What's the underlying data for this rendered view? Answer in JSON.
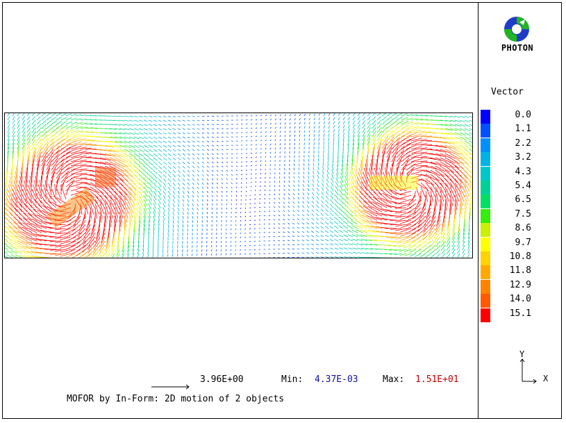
{
  "logo": {
    "text": "PHOTON",
    "icon": "photon-logo-icon"
  },
  "legend": {
    "title": "Vector",
    "entries": [
      {
        "value": "0.0",
        "color": "#0000ff"
      },
      {
        "value": "1.1",
        "color": "#0050ff"
      },
      {
        "value": "2.2",
        "color": "#0090ff"
      },
      {
        "value": "3.2",
        "color": "#00b4e6"
      },
      {
        "value": "4.3",
        "color": "#00c8c8"
      },
      {
        "value": "5.4",
        "color": "#00d296"
      },
      {
        "value": "6.5",
        "color": "#00e164"
      },
      {
        "value": "7.5",
        "color": "#32f00a"
      },
      {
        "value": "8.6",
        "color": "#c8f000"
      },
      {
        "value": "9.7",
        "color": "#ffff00"
      },
      {
        "value": "10.8",
        "color": "#ffd200"
      },
      {
        "value": "11.8",
        "color": "#ffaa00"
      },
      {
        "value": "12.9",
        "color": "#ff8200"
      },
      {
        "value": "14.0",
        "color": "#ff5a00"
      },
      {
        "value": "15.1",
        "color": "#ff0000"
      }
    ]
  },
  "axes": {
    "y_label": "Y",
    "x_label": "X"
  },
  "footer": {
    "reference_value": "3.96E+00",
    "min_label": "Min:",
    "min_value": "4.37E-03",
    "max_label": "Max:",
    "max_value": "1.51E+01",
    "caption": "MOFOR by In-Form: 2D motion of 2 objects"
  }
}
